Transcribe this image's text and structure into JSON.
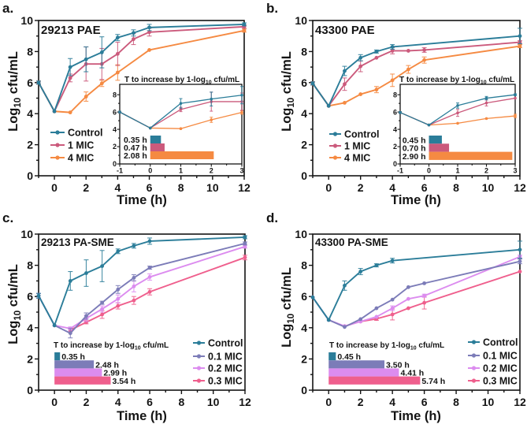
{
  "chart_data": [
    {
      "type": "line",
      "panel_label": "a.",
      "title": "29213 PAE",
      "xlabel": "Time (h)",
      "ylabel": {
        "prefix": "Log",
        "sub": "10",
        "suffix": " cfu/mL"
      },
      "xlim": [
        -1,
        12
      ],
      "ylim": [
        0,
        10
      ],
      "xticks": [
        0,
        2,
        4,
        6,
        8,
        10,
        12
      ],
      "yticks": [
        0,
        2,
        4,
        6,
        8,
        10
      ],
      "grid": false,
      "legend_position": "left",
      "series": [
        {
          "name": "Control",
          "color": "#2b7d99",
          "points": [
            [
              -1,
              6.0,
              0.1
            ],
            [
              0,
              4.15,
              0.05
            ],
            [
              1,
              7.0,
              0.55
            ],
            [
              2,
              7.5,
              0.8
            ],
            [
              3,
              7.95,
              1.0
            ],
            [
              4,
              8.9,
              0.2
            ],
            [
              5,
              9.2,
              0.2
            ],
            [
              6,
              9.55,
              0.2
            ],
            [
              12,
              9.75,
              0.1
            ]
          ]
        },
        {
          "name": "1 MIC",
          "color": "#cb5a7c",
          "points": [
            [
              -1,
              6.0,
              0.1
            ],
            [
              0,
              4.15,
              0.05
            ],
            [
              1,
              6.3,
              0.25
            ],
            [
              2,
              7.2,
              1.1
            ],
            [
              3,
              7.2,
              1.0
            ],
            [
              4,
              7.85,
              0.75
            ],
            [
              5,
              8.8,
              0.35
            ],
            [
              6,
              9.25,
              0.25
            ],
            [
              12,
              9.6,
              0.1
            ]
          ]
        },
        {
          "name": "4 MIC",
          "color": "#f58a42",
          "points": [
            [
              -1,
              6.0,
              0.1
            ],
            [
              0,
              4.15,
              0.05
            ],
            [
              1,
              4.08,
              0.05
            ],
            [
              2,
              5.1,
              0.3
            ],
            [
              3,
              5.95,
              0.2
            ],
            [
              4,
              6.65,
              0.5
            ],
            [
              6,
              8.1,
              0.05
            ],
            [
              12,
              9.35,
              0.1
            ]
          ]
        }
      ],
      "inset": {
        "title": {
          "prefix": "T to increase by 1-log",
          "sub": "10",
          "suffix": " cfu/mL"
        },
        "xlim": [
          -1,
          3
        ],
        "ylim": [
          0,
          9.2
        ],
        "xticks": [
          -1,
          0,
          1,
          2,
          3
        ],
        "yticks": [
          0,
          2,
          4,
          6,
          8
        ],
        "bars": [
          {
            "series": "Control",
            "value": 0.35,
            "label": "0.35 h",
            "color": "#2b7d99"
          },
          {
            "series": "1 MIC",
            "value": 0.47,
            "label": "0.47 h",
            "color": "#cb5a7c"
          },
          {
            "series": "4 MIC",
            "value": 2.08,
            "label": "2.08 h",
            "color": "#f58a42"
          }
        ]
      }
    },
    {
      "type": "line",
      "panel_label": "b.",
      "title": "43300 PAE",
      "xlabel": "Time (h)",
      "ylabel": {
        "prefix": "Log",
        "sub": "10",
        "suffix": " cfu/mL"
      },
      "xlim": [
        -1,
        12
      ],
      "ylim": [
        0,
        10
      ],
      "xticks": [
        0,
        2,
        4,
        6,
        8,
        10,
        12
      ],
      "yticks": [
        0,
        2,
        4,
        6,
        8,
        10
      ],
      "grid": false,
      "legend_position": "left",
      "series": [
        {
          "name": "Control",
          "color": "#2b7d99",
          "points": [
            [
              -1,
              5.95,
              0.1
            ],
            [
              0,
              4.5,
              0.05
            ],
            [
              1,
              6.75,
              0.3
            ],
            [
              2,
              7.6,
              0.2
            ],
            [
              3,
              8.0,
              0.1
            ],
            [
              4,
              8.3,
              0.15
            ],
            [
              12,
              9.0,
              0.5
            ]
          ]
        },
        {
          "name": "1 MIC",
          "color": "#cb5a7c",
          "points": [
            [
              -1,
              5.95,
              0.1
            ],
            [
              0,
              4.5,
              0.05
            ],
            [
              1,
              5.9,
              0.4
            ],
            [
              2,
              7.05,
              0.35
            ],
            [
              3,
              7.6,
              0.05
            ],
            [
              4,
              8.05,
              0.2
            ],
            [
              5,
              8.05,
              0.05
            ],
            [
              6,
              8.1,
              0.15
            ],
            [
              12,
              8.6,
              0.1
            ]
          ]
        },
        {
          "name": "4 MIC",
          "color": "#f58a42",
          "points": [
            [
              -1,
              5.95,
              0.1
            ],
            [
              0,
              4.5,
              0.05
            ],
            [
              1,
              4.7,
              0.05
            ],
            [
              2,
              5.25,
              0.05
            ],
            [
              3,
              5.55,
              0.2
            ],
            [
              4,
              6.15,
              0.4
            ],
            [
              5,
              6.85,
              0.25
            ],
            [
              6,
              7.45,
              0.2
            ],
            [
              12,
              8.35,
              0.1
            ]
          ]
        }
      ],
      "inset": {
        "title": {
          "prefix": "T to increase by 1-log",
          "sub": "10",
          "suffix": " cfu/mL"
        },
        "xlim": [
          -1,
          3
        ],
        "ylim": [
          0,
          9.2
        ],
        "xticks": [
          -1,
          0,
          1,
          2,
          3
        ],
        "yticks": [
          0,
          2,
          4,
          6,
          8
        ],
        "bars": [
          {
            "series": "Control",
            "value": 0.45,
            "label": "0.45 h",
            "color": "#2b7d99"
          },
          {
            "series": "1 MIC",
            "value": 0.7,
            "label": "0.70 h",
            "color": "#cb5a7c"
          },
          {
            "series": "4 MIC",
            "value": 2.9,
            "label": "2.90 h",
            "color": "#f58a42"
          }
        ]
      }
    },
    {
      "type": "line",
      "panel_label": "c.",
      "title": "29213 PA-SME",
      "xlabel": "Time (h)",
      "ylabel": {
        "prefix": "Log",
        "sub": "10",
        "suffix": " cfu/mL"
      },
      "xlim": [
        -1,
        12
      ],
      "ylim": [
        0,
        10
      ],
      "xticks": [
        0,
        2,
        4,
        6,
        8,
        10,
        12
      ],
      "yticks": [
        0,
        2,
        4,
        6,
        8,
        10
      ],
      "grid": false,
      "legend_position": "bottom-right",
      "series": [
        {
          "name": "Control",
          "color": "#2b7d99",
          "points": [
            [
              -1,
              6.05,
              0.15
            ],
            [
              0,
              4.15,
              0.05
            ],
            [
              1,
              7.0,
              0.6
            ],
            [
              2,
              7.5,
              0.85
            ],
            [
              3,
              7.95,
              1.0
            ],
            [
              4,
              8.9,
              0.15
            ],
            [
              5,
              9.25,
              0.15
            ],
            [
              6,
              9.55,
              0.2
            ],
            [
              12,
              9.8,
              0.1
            ]
          ]
        },
        {
          "name": "0.1 MIC",
          "color": "#7c7cb8",
          "points": [
            [
              -1,
              6.05,
              0.15
            ],
            [
              0,
              4.15,
              0.05
            ],
            [
              1,
              3.65,
              0.3
            ],
            [
              2,
              4.75,
              0.2
            ],
            [
              3,
              5.6,
              0.1
            ],
            [
              4,
              6.45,
              0.25
            ],
            [
              5,
              7.2,
              0.2
            ],
            [
              6,
              7.85,
              0.1
            ],
            [
              12,
              9.4,
              0.1
            ]
          ]
        },
        {
          "name": "0.2 MIC",
          "color": "#dc8cef",
          "points": [
            [
              -1,
              6.05,
              0.15
            ],
            [
              0,
              4.15,
              0.05
            ],
            [
              1,
              3.95,
              0.1
            ],
            [
              2,
              4.6,
              0.2
            ],
            [
              3,
              5.2,
              0.2
            ],
            [
              4,
              5.85,
              0.25
            ],
            [
              5,
              6.65,
              0.35
            ],
            [
              6,
              7.25,
              0.2
            ],
            [
              12,
              9.2,
              0.1
            ]
          ]
        },
        {
          "name": "0.3 MIC",
          "color": "#ef5f8d",
          "points": [
            [
              1,
              3.85,
              0.1
            ],
            [
              2,
              4.35,
              0.1
            ],
            [
              3,
              4.85,
              0.25
            ],
            [
              4,
              5.4,
              0.2
            ],
            [
              5,
              5.75,
              0.25
            ],
            [
              6,
              6.3,
              0.2
            ],
            [
              12,
              8.5,
              0.15
            ]
          ]
        }
      ],
      "time_to_increase": {
        "title": {
          "prefix": "T to increase by 1-log",
          "sub": "10",
          "suffix": " cfu/mL"
        },
        "bars": [
          {
            "series": "Control",
            "value": 0.35,
            "label": "0.35 h",
            "color": "#2b7d99"
          },
          {
            "series": "0.1 MIC",
            "value": 2.48,
            "label": "2.48 h",
            "color": "#7c7cb8"
          },
          {
            "series": "0.2 MIC",
            "value": 2.99,
            "label": "2.99 h",
            "color": "#dc8cef"
          },
          {
            "series": "0.3 MIC",
            "value": 3.54,
            "label": "3.54 h",
            "color": "#ef5f8d"
          }
        ]
      }
    },
    {
      "type": "line",
      "panel_label": "d.",
      "title": "43300 PA-SME",
      "xlabel": "Time (h)",
      "ylabel": {
        "prefix": "Log",
        "sub": "10",
        "suffix": " cfu/mL"
      },
      "xlim": [
        -1,
        12
      ],
      "ylim": [
        0,
        10
      ],
      "xticks": [
        0,
        2,
        4,
        6,
        8,
        10,
        12
      ],
      "yticks": [
        0,
        2,
        4,
        6,
        8,
        10
      ],
      "grid": false,
      "legend_position": "bottom-right",
      "series": [
        {
          "name": "Control",
          "color": "#2b7d99",
          "points": [
            [
              -1,
              5.95,
              0.05
            ],
            [
              0,
              4.5,
              0.05
            ],
            [
              1,
              6.7,
              0.3
            ],
            [
              2,
              7.6,
              0.2
            ],
            [
              3,
              8.0,
              0.1
            ],
            [
              4,
              8.3,
              0.15
            ],
            [
              12,
              9.0,
              0.55
            ]
          ]
        },
        {
          "name": "0.1 MIC",
          "color": "#7c7cb8",
          "points": [
            [
              -1,
              5.95,
              0.05
            ],
            [
              0,
              4.5,
              0.05
            ],
            [
              1,
              4.05,
              0.05
            ],
            [
              2,
              4.55,
              0.05
            ],
            [
              3,
              5.25,
              0.05
            ],
            [
              4,
              5.8,
              0.05
            ],
            [
              5,
              6.6,
              0.05
            ],
            [
              6,
              6.85,
              0.05
            ],
            [
              12,
              8.25,
              0.15
            ]
          ]
        },
        {
          "name": "0.2 MIC",
          "color": "#dc8cef",
          "points": [
            [
              -1,
              5.95,
              0.05
            ],
            [
              0,
              4.5,
              0.05
            ],
            [
              1,
              4.1,
              0.05
            ],
            [
              2,
              4.4,
              0.05
            ],
            [
              3,
              4.7,
              0.05
            ],
            [
              4,
              5.25,
              0.15
            ],
            [
              5,
              5.85,
              0.05
            ],
            [
              6,
              6.05,
              0.1
            ],
            [
              12,
              8.55,
              0.1
            ]
          ]
        },
        {
          "name": "0.3 MIC",
          "color": "#ef5f8d",
          "points": [
            [
              1,
              4.1,
              0.05
            ],
            [
              2,
              4.4,
              0.05
            ],
            [
              3,
              4.57,
              0.1
            ],
            [
              4,
              4.85,
              0.35
            ],
            [
              5,
              5.25,
              0.05
            ],
            [
              6,
              5.6,
              0.4
            ],
            [
              12,
              7.6,
              0.05
            ]
          ]
        }
      ],
      "time_to_increase": {
        "title": {
          "prefix": "T to increase by 1-log",
          "sub": "10",
          "suffix": " cfu/mL"
        },
        "bars": [
          {
            "series": "Control",
            "value": 0.45,
            "label": "0.45 h",
            "color": "#2b7d99"
          },
          {
            "series": "0.1 MIC",
            "value": 3.5,
            "label": "3.50 h",
            "color": "#7c7cb8"
          },
          {
            "series": "0.2 MIC",
            "value": 4.41,
            "label": "4.41 h",
            "color": "#dc8cef"
          },
          {
            "series": "0.3 MIC",
            "value": 5.74,
            "label": "5.74 h",
            "color": "#ef5f8d"
          }
        ]
      }
    }
  ]
}
